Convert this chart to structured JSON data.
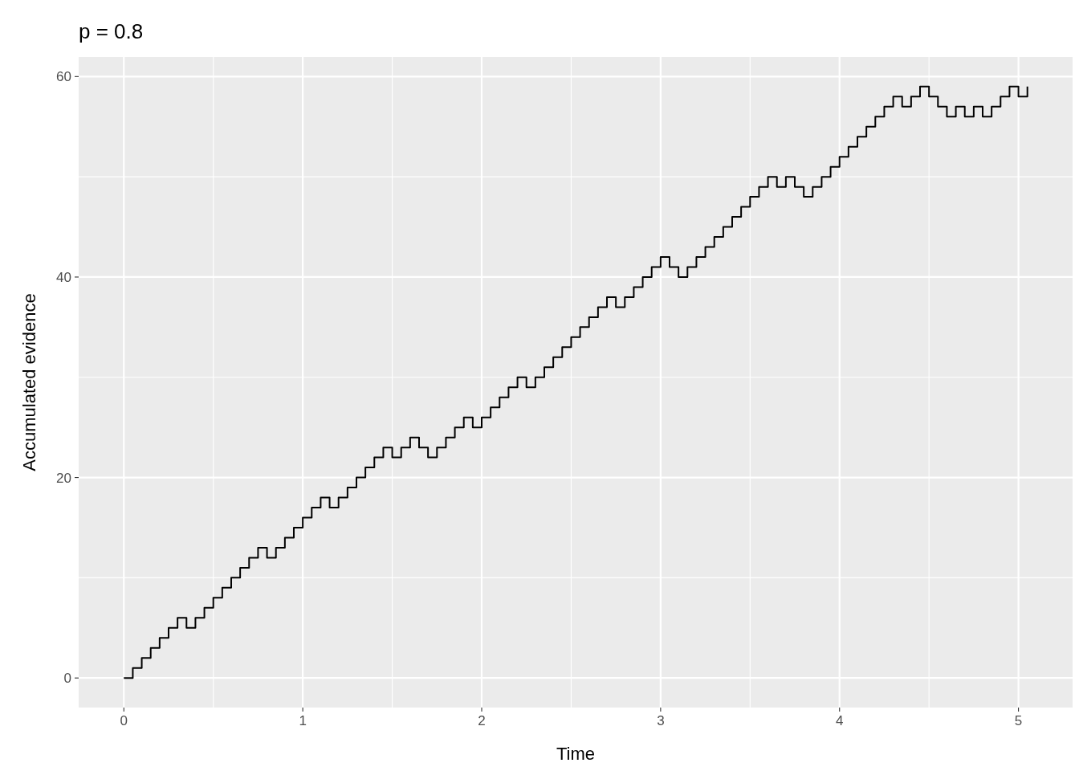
{
  "chart_data": {
    "type": "step",
    "title": "p = 0.8",
    "xlabel": "Time",
    "ylabel": "Accumulated evidence",
    "x": [
      0,
      0.05,
      0.1,
      0.15,
      0.2,
      0.25,
      0.3,
      0.35,
      0.4,
      0.45,
      0.5,
      0.55,
      0.6,
      0.65,
      0.7,
      0.75,
      0.8,
      0.85,
      0.9,
      0.95,
      1,
      1.05,
      1.1,
      1.15,
      1.2,
      1.25,
      1.3,
      1.35,
      1.4,
      1.45,
      1.5,
      1.55,
      1.6,
      1.65,
      1.7,
      1.75,
      1.8,
      1.85,
      1.9,
      1.95,
      2,
      2.05,
      2.1,
      2.15,
      2.2,
      2.25,
      2.3,
      2.35,
      2.4,
      2.45,
      2.5,
      2.55,
      2.6,
      2.65,
      2.7,
      2.75,
      2.8,
      2.85,
      2.9,
      2.95,
      3,
      3.05,
      3.1,
      3.15,
      3.2,
      3.25,
      3.3,
      3.35,
      3.4,
      3.45,
      3.5,
      3.55,
      3.6,
      3.65,
      3.7,
      3.75,
      3.8,
      3.85,
      3.9,
      3.95,
      4,
      4.05,
      4.1,
      4.15,
      4.2,
      4.25,
      4.3,
      4.35,
      4.4,
      4.45,
      4.5,
      4.55,
      4.6,
      4.65,
      4.7,
      4.75,
      4.8,
      4.85,
      4.9,
      4.95,
      5,
      5.05
    ],
    "series": [
      {
        "color": "#000000",
        "values": [
          0,
          1,
          2,
          3,
          4,
          5,
          6,
          5,
          6,
          7,
          8,
          9,
          10,
          11,
          12,
          13,
          12,
          13,
          14,
          15,
          16,
          17,
          18,
          17,
          18,
          19,
          20,
          21,
          22,
          23,
          22,
          23,
          24,
          23,
          22,
          23,
          24,
          25,
          26,
          25,
          26,
          27,
          28,
          29,
          30,
          29,
          30,
          31,
          32,
          33,
          34,
          35,
          36,
          37,
          38,
          37,
          38,
          39,
          40,
          41,
          42,
          41,
          40,
          41,
          42,
          43,
          44,
          45,
          46,
          47,
          48,
          49,
          50,
          49,
          50,
          49,
          48,
          49,
          50,
          51,
          52,
          53,
          54,
          55,
          56,
          57,
          58,
          57,
          58,
          59,
          58,
          57,
          56,
          57,
          56,
          57,
          56,
          57,
          58,
          59,
          58,
          59
        ]
      }
    ],
    "xlim": [
      -0.2525,
      5.3025
    ],
    "ylim": [
      -2.95,
      61.95
    ],
    "xticks": [
      0,
      {
        "value": 0.5,
        "label": null
      },
      1,
      {
        "value": 1.5,
        "label": null
      },
      2,
      {
        "value": 2.5,
        "label": null
      },
      3,
      {
        "value": 3.5,
        "label": null
      },
      4,
      {
        "value": 4.5,
        "label": null
      },
      5
    ],
    "yticks": [
      0,
      {
        "value": 10,
        "label": null
      },
      20,
      {
        "value": 30,
        "label": null
      },
      40,
      {
        "value": 50,
        "label": null
      },
      60
    ],
    "grid": true,
    "line_style": "solid",
    "marker": "none"
  }
}
